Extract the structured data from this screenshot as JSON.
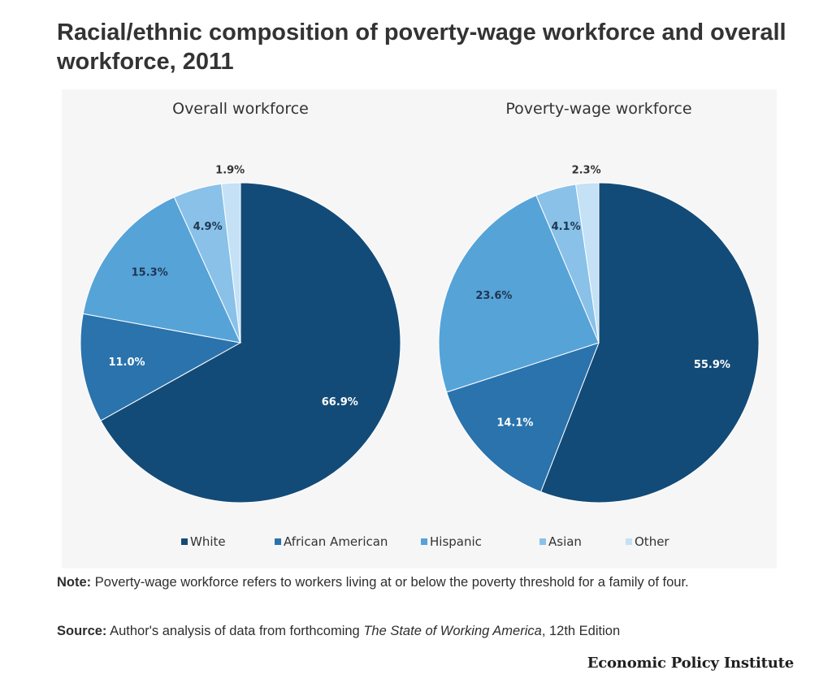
{
  "header": {
    "title": "Racial/ethnic composition of poverty-wage workforce and overall workforce, 2011"
  },
  "colors": {
    "White": "#134b78",
    "African American": "#2a73ad",
    "Hispanic": "#56a3d8",
    "Asian": "#89c1e8",
    "Other": "#c4e1f5"
  },
  "chart_data": [
    {
      "type": "pie",
      "title": "Overall workforce",
      "categories": [
        "White",
        "African American",
        "Hispanic",
        "Asian",
        "Other"
      ],
      "values": [
        66.9,
        11.0,
        15.3,
        4.9,
        1.9
      ],
      "labels": [
        "66.9%",
        "11.0%",
        "15.3%",
        "4.9%",
        "1.9%"
      ]
    },
    {
      "type": "pie",
      "title": "Poverty-wage workforce",
      "categories": [
        "White",
        "African American",
        "Hispanic",
        "Asian",
        "Other"
      ],
      "values": [
        55.9,
        14.1,
        23.6,
        4.1,
        2.3
      ],
      "labels": [
        "55.9%",
        "14.1%",
        "23.6%",
        "4.1%",
        "2.3%"
      ]
    }
  ],
  "legend": {
    "placement": "bottom",
    "items": [
      "White",
      "African American",
      "Hispanic",
      "Asian",
      "Other"
    ]
  },
  "note": {
    "label": "Note:",
    "text": " Poverty-wage workforce refers to workers living at or below the poverty threshold for a family of four."
  },
  "source": {
    "label": "Source:",
    "text_before": " Author's analysis of data from forthcoming ",
    "text_italic": "The State of Working America",
    "text_after": ", 12th Edition"
  },
  "brand": "Economic Policy Institute"
}
